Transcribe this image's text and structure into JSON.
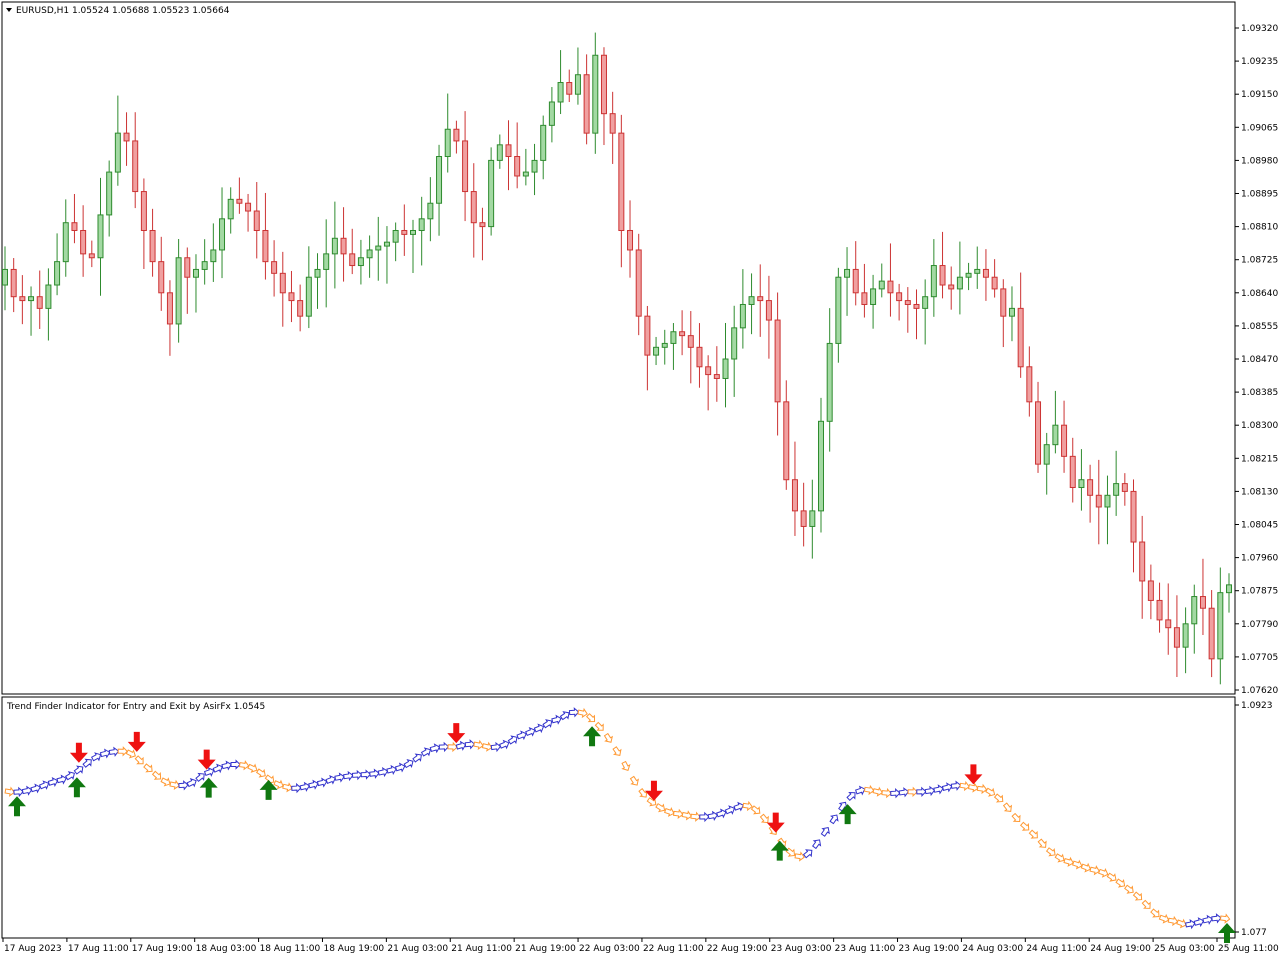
{
  "window": {
    "symbol_line": "EURUSD,H1  1.05524 1.05688 1.05523 1.05664",
    "indicator_title": "Trend Finder Indicator for Entry and Exit by AsirFx 1.0545"
  },
  "colors": {
    "bull": "#2e8b2e",
    "bull_fill": "#a3d9a3",
    "bear": "#cc3333",
    "bear_fill": "#f0a0a0",
    "up_trail": "#3333cc",
    "down_trail": "#ff9933",
    "buy_arrow": "#107810",
    "sell_arrow": "#ee1111"
  },
  "chart_data": [
    {
      "type": "candlestick",
      "symbol": "EURUSD",
      "timeframe": "H1",
      "ylim": [
        1.0762,
        1.0932
      ],
      "y_ticks": [
        "1.09320",
        "1.09235",
        "1.09150",
        "1.09065",
        "1.08980",
        "1.08895",
        "1.08810",
        "1.08725",
        "1.08640",
        "1.08555",
        "1.08470",
        "1.08385",
        "1.08300",
        "1.08215",
        "1.08130",
        "1.08045",
        "1.07960",
        "1.07875",
        "1.07790",
        "1.07705",
        "1.07620"
      ],
      "x_ticks": [
        "17 Aug 2023",
        "17 Aug 11:00",
        "17 Aug 19:00",
        "18 Aug 03:00",
        "18 Aug 11:00",
        "18 Aug 19:00",
        "21 Aug 03:00",
        "21 Aug 11:00",
        "21 Aug 19:00",
        "22 Aug 03:00",
        "22 Aug 11:00",
        "22 Aug 19:00",
        "23 Aug 03:00",
        "23 Aug 11:00",
        "23 Aug 19:00",
        "24 Aug 03:00",
        "24 Aug 11:00",
        "24 Aug 19:00",
        "25 Aug 03:00",
        "25 Aug 11:00"
      ],
      "closes": [
        1.087,
        1.0863,
        1.0862,
        1.0863,
        1.086,
        1.0866,
        1.0872,
        1.0882,
        1.088,
        1.0874,
        1.0873,
        1.0884,
        1.0895,
        1.0905,
        1.0903,
        1.089,
        1.088,
        1.0872,
        1.0864,
        1.0856,
        1.0873,
        1.0868,
        1.087,
        1.0872,
        1.0875,
        1.0883,
        1.0888,
        1.0887,
        1.0885,
        1.088,
        1.0872,
        1.0869,
        1.0864,
        1.0862,
        1.0858,
        1.0868,
        1.087,
        1.0874,
        1.0878,
        1.0874,
        1.0871,
        1.0873,
        1.0875,
        1.0876,
        1.0877,
        1.088,
        1.0879,
        1.088,
        1.0883,
        1.0887,
        1.0899,
        1.0906,
        1.0903,
        1.089,
        1.0882,
        1.0881,
        1.0898,
        1.0902,
        1.0899,
        1.0894,
        1.0895,
        1.0898,
        1.0907,
        1.0913,
        1.0918,
        1.0915,
        1.092,
        1.0905,
        1.0925,
        1.091,
        1.0905,
        1.088,
        1.0875,
        1.0858,
        1.0848,
        1.085,
        1.0851,
        1.0854,
        1.0853,
        1.085,
        1.0845,
        1.0843,
        1.0842,
        1.0847,
        1.0855,
        1.0861,
        1.0863,
        1.0862,
        1.0857,
        1.0836,
        1.0816,
        1.0808,
        1.0804,
        1.0808,
        1.0831,
        1.0851,
        1.0868,
        1.087,
        1.0864,
        1.0861,
        1.0865,
        1.0867,
        1.0864,
        1.0862,
        1.0861,
        1.086,
        1.0863,
        1.0871,
        1.0866,
        1.0865,
        1.0868,
        1.0869,
        1.087,
        1.0868,
        1.0865,
        1.0858,
        1.086,
        1.0845,
        1.0836,
        1.082,
        1.0825,
        1.083,
        1.0822,
        1.0814,
        1.0816,
        1.0812,
        1.0809,
        1.0812,
        1.0815,
        1.0813,
        1.08,
        1.079,
        1.0785,
        1.078,
        1.0778,
        1.0773,
        1.0779,
        1.0786,
        1.0783,
        1.077,
        1.0787,
        1.0789
      ],
      "buy_signals": [
        "17 Aug 2023",
        "17 Aug 11:00",
        "18 Aug 03:00",
        "18 Aug 11:00",
        "22 Aug 03:00",
        "23 Aug 03:00",
        "23 Aug 11:00",
        "25 Aug 11:00"
      ],
      "sell_signals": [
        "17 Aug 11:00",
        "17 Aug 19:00",
        "18 Aug 03:00",
        "21 Aug 11:00",
        "22 Aug 11:00",
        "23 Aug 03:00",
        "24 Aug 03:00"
      ]
    },
    {
      "type": "line",
      "name": "Trend Finder Indicator for Entry and Exit by AsirFx",
      "y_ticks": [
        "1.0923",
        "1.077"
      ]
    }
  ]
}
